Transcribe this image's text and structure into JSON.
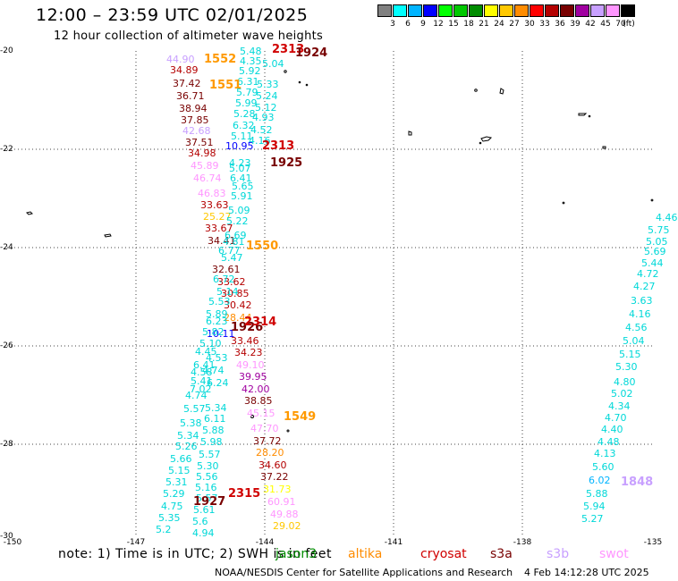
{
  "header": {
    "title": "12:00 – 23:59 UTC 02/01/2025",
    "subtitle": "12 hour collection of altimeter wave heights"
  },
  "colorbar": {
    "unit": "(ft)",
    "bins": [
      {
        "label": "3",
        "color": "#808080"
      },
      {
        "label": "6",
        "color": "#00ffff"
      },
      {
        "label": "9",
        "color": "#00b4ff"
      },
      {
        "label": "12",
        "color": "#0000ff"
      },
      {
        "label": "15",
        "color": "#00ff00"
      },
      {
        "label": "18",
        "color": "#00c800"
      },
      {
        "label": "21",
        "color": "#008c00"
      },
      {
        "label": "24",
        "color": "#ffff00"
      },
      {
        "label": "27",
        "color": "#ffc800"
      },
      {
        "label": "30",
        "color": "#ff8c00"
      },
      {
        "label": "33",
        "color": "#ff0000"
      },
      {
        "label": "36",
        "color": "#b40000"
      },
      {
        "label": "39",
        "color": "#780000"
      },
      {
        "label": "42",
        "color": "#a000a0"
      },
      {
        "label": "45",
        "color": "#c8a0ff"
      },
      {
        "label": "70",
        "color": "#ff96ff"
      },
      {
        "label": "",
        "color": "#000000"
      }
    ]
  },
  "map": {
    "lat_labels": [
      "-20",
      "-22",
      "-24",
      "-26",
      "-28",
      "-30"
    ],
    "lon_labels": [
      "-150",
      "-147",
      "-144",
      "-141",
      "-138",
      "-135"
    ],
    "pass_labels": [
      {
        "text": "2313",
        "color": "#d00000"
      },
      {
        "text": "1924",
        "color": "#780000"
      },
      {
        "text": "1552",
        "color": "#ff9900"
      },
      {
        "text": "1551",
        "color": "#ff9900"
      },
      {
        "text": "2313",
        "color": "#d00000"
      },
      {
        "text": "1925",
        "color": "#780000"
      },
      {
        "text": "1550",
        "color": "#ff9900"
      },
      {
        "text": "1926",
        "color": "#780000"
      },
      {
        "text": "2314",
        "color": "#d00000"
      },
      {
        "text": "1549",
        "color": "#ff9900"
      },
      {
        "text": "2315",
        "color": "#d00000"
      },
      {
        "text": "1927",
        "color": "#780000"
      },
      {
        "text": "1848",
        "color": "#c8a0ff"
      }
    ],
    "observations": [
      {
        "text": "5.48",
        "color": "#00d8d8"
      },
      {
        "text": "4.35",
        "color": "#00d8d8"
      },
      {
        "text": "5.04",
        "color": "#00d8d8"
      },
      {
        "text": "5.92",
        "color": "#00d8d8"
      },
      {
        "text": "6.31",
        "color": "#00d8d8"
      },
      {
        "text": "5.33",
        "color": "#00d8d8"
      },
      {
        "text": "5.79",
        "color": "#00d8d8"
      },
      {
        "text": "5.24",
        "color": "#00d8d8"
      },
      {
        "text": "5.99",
        "color": "#00d8d8"
      },
      {
        "text": "5.12",
        "color": "#00d8d8"
      },
      {
        "text": "5.28",
        "color": "#00d8d8"
      },
      {
        "text": "4.93",
        "color": "#00d8d8"
      },
      {
        "text": "6.32",
        "color": "#00d8d8"
      },
      {
        "text": "4.52",
        "color": "#00d8d8"
      },
      {
        "text": "5.11",
        "color": "#00d8d8"
      },
      {
        "text": "4.16",
        "color": "#00d8d8"
      },
      {
        "text": "44.90",
        "color": "#c8a0ff"
      },
      {
        "text": "34.89",
        "color": "#b40000"
      },
      {
        "text": "37.42",
        "color": "#780000"
      },
      {
        "text": "36.71",
        "color": "#780000"
      },
      {
        "text": "38.94",
        "color": "#780000"
      },
      {
        "text": "37.85",
        "color": "#780000"
      },
      {
        "text": "42.68",
        "color": "#c8a0ff"
      },
      {
        "text": "37.51",
        "color": "#780000"
      },
      {
        "text": "10.95",
        "color": "#0000ff"
      },
      {
        "text": "34.98",
        "color": "#b40000"
      },
      {
        "text": "45.89",
        "color": "#ff96ff"
      },
      {
        "text": "46.74",
        "color": "#ff96ff"
      },
      {
        "text": "46.83",
        "color": "#ff96ff"
      },
      {
        "text": "33.63",
        "color": "#b40000"
      },
      {
        "text": "25.27",
        "color": "#ffc800"
      },
      {
        "text": "33.67",
        "color": "#b40000"
      },
      {
        "text": "34.41",
        "color": "#780000"
      },
      {
        "text": "32.61",
        "color": "#780000"
      },
      {
        "text": "33.62",
        "color": "#b40000"
      },
      {
        "text": "30.85",
        "color": "#b40000"
      },
      {
        "text": "30.42",
        "color": "#b40000"
      },
      {
        "text": "28.44",
        "color": "#ff8c00"
      },
      {
        "text": "10.11",
        "color": "#0000ff"
      },
      {
        "text": "33.46",
        "color": "#b40000"
      },
      {
        "text": "34.23",
        "color": "#b40000"
      },
      {
        "text": "49.10",
        "color": "#ff96ff"
      },
      {
        "text": "39.95",
        "color": "#a000a0"
      },
      {
        "text": "42.00",
        "color": "#a000a0"
      },
      {
        "text": "38.85",
        "color": "#780000"
      },
      {
        "text": "45.15",
        "color": "#ff96ff"
      },
      {
        "text": "47.70",
        "color": "#ff96ff"
      },
      {
        "text": "37.72",
        "color": "#780000"
      },
      {
        "text": "28.20",
        "color": "#ff8c00"
      },
      {
        "text": "34.60",
        "color": "#b40000"
      },
      {
        "text": "37.22",
        "color": "#780000"
      },
      {
        "text": "31.73",
        "color": "#ffff00"
      },
      {
        "text": "60.91",
        "color": "#ff96ff"
      },
      {
        "text": "49.88",
        "color": "#ff96ff"
      },
      {
        "text": "29.02",
        "color": "#ffc800"
      },
      {
        "text": "4.23",
        "color": "#00d8d8"
      },
      {
        "text": "5.07",
        "color": "#00d8d8"
      },
      {
        "text": "6.41",
        "color": "#00d8d8"
      },
      {
        "text": "5.65",
        "color": "#00d8d8"
      },
      {
        "text": "5.91",
        "color": "#00d8d8"
      },
      {
        "text": "5.09",
        "color": "#00d8d8"
      },
      {
        "text": "5.22",
        "color": "#00d8d8"
      },
      {
        "text": "6.69",
        "color": "#00d8d8"
      },
      {
        "text": "4.81",
        "color": "#00d8d8"
      },
      {
        "text": "6.77",
        "color": "#00d8d8"
      },
      {
        "text": "5.47",
        "color": "#00d8d8"
      },
      {
        "text": "6.72",
        "color": "#00d8d8"
      },
      {
        "text": "5.14",
        "color": "#00d8d8"
      },
      {
        "text": "5.53",
        "color": "#00d8d8"
      },
      {
        "text": "5.89",
        "color": "#00d8d8"
      },
      {
        "text": "6.23",
        "color": "#00d8d8"
      },
      {
        "text": "5.82",
        "color": "#00d8d8"
      },
      {
        "text": "5.10",
        "color": "#00d8d8"
      },
      {
        "text": "4.45",
        "color": "#00d8d8"
      },
      {
        "text": "4.53",
        "color": "#00d8d8"
      },
      {
        "text": "6.41",
        "color": "#00d8d8"
      },
      {
        "text": "4.74",
        "color": "#00d8d8"
      },
      {
        "text": "4.58",
        "color": "#00d8d8"
      },
      {
        "text": "5.41",
        "color": "#00d8d8"
      },
      {
        "text": "6.24",
        "color": "#00d8d8"
      },
      {
        "text": "7.02",
        "color": "#00d8d8"
      },
      {
        "text": "4.74",
        "color": "#00d8d8"
      },
      {
        "text": "5.34",
        "color": "#00d8d8"
      },
      {
        "text": "5.57",
        "color": "#00d8d8"
      },
      {
        "text": "6.11",
        "color": "#00d8d8"
      },
      {
        "text": "5.38",
        "color": "#00d8d8"
      },
      {
        "text": "5.88",
        "color": "#00d8d8"
      },
      {
        "text": "5.34",
        "color": "#00d8d8"
      },
      {
        "text": "5.98",
        "color": "#00d8d8"
      },
      {
        "text": "5.26",
        "color": "#00d8d8"
      },
      {
        "text": "5.57",
        "color": "#00d8d8"
      },
      {
        "text": "5.66",
        "color": "#00d8d8"
      },
      {
        "text": "5.30",
        "color": "#00d8d8"
      },
      {
        "text": "5.15",
        "color": "#00d8d8"
      },
      {
        "text": "5.56",
        "color": "#00d8d8"
      },
      {
        "text": "5.31",
        "color": "#00d8d8"
      },
      {
        "text": "5.16",
        "color": "#00d8d8"
      },
      {
        "text": "5.29",
        "color": "#00d8d8"
      },
      {
        "text": "5.57",
        "color": "#00d8d8"
      },
      {
        "text": "4.75",
        "color": "#00d8d8"
      },
      {
        "text": "5.61",
        "color": "#00d8d8"
      },
      {
        "text": "5.35",
        "color": "#00d8d8"
      },
      {
        "text": "5.6",
        "color": "#00d8d8"
      },
      {
        "text": "5.2",
        "color": "#00d8d8"
      },
      {
        "text": "4.94",
        "color": "#00d8d8"
      },
      {
        "text": "4.46",
        "color": "#00d8d8"
      },
      {
        "text": "5.75",
        "color": "#00d8d8"
      },
      {
        "text": "5.05",
        "color": "#00d8d8"
      },
      {
        "text": "5.69",
        "color": "#00d8d8"
      },
      {
        "text": "5.44",
        "color": "#00d8d8"
      },
      {
        "text": "4.72",
        "color": "#00d8d8"
      },
      {
        "text": "4.27",
        "color": "#00d8d8"
      },
      {
        "text": "3.63",
        "color": "#00d8d8"
      },
      {
        "text": "4.16",
        "color": "#00d8d8"
      },
      {
        "text": "4.56",
        "color": "#00d8d8"
      },
      {
        "text": "5.04",
        "color": "#00d8d8"
      },
      {
        "text": "5.15",
        "color": "#00d8d8"
      },
      {
        "text": "5.30",
        "color": "#00d8d8"
      },
      {
        "text": "4.80",
        "color": "#00d8d8"
      },
      {
        "text": "5.02",
        "color": "#00d8d8"
      },
      {
        "text": "4.34",
        "color": "#00d8d8"
      },
      {
        "text": "4.70",
        "color": "#00d8d8"
      },
      {
        "text": "4.40",
        "color": "#00d8d8"
      },
      {
        "text": "4.48",
        "color": "#00d8d8"
      },
      {
        "text": "4.13",
        "color": "#00d8d8"
      },
      {
        "text": "5.60",
        "color": "#00d8d8"
      },
      {
        "text": "6.02",
        "color": "#00b4ff"
      },
      {
        "text": "5.88",
        "color": "#00d8d8"
      },
      {
        "text": "5.94",
        "color": "#00d8d8"
      },
      {
        "text": "5.27",
        "color": "#00d8d8"
      }
    ]
  },
  "footer": {
    "note": "note: 1) Time is in UTC; 2) SWH is in feet",
    "satellites": [
      {
        "name": "jason3",
        "color": "#008c00"
      },
      {
        "name": "altika",
        "color": "#ff8c00"
      },
      {
        "name": "cryosat",
        "color": "#d00000"
      },
      {
        "name": "s3a",
        "color": "#780000"
      },
      {
        "name": "s3b",
        "color": "#c8a0ff"
      },
      {
        "name": "swot",
        "color": "#ff96ff"
      }
    ],
    "credit": "NOAA/NESDIS Center for Satellite Applications and Research",
    "timestamp": "4 Feb 14:12:28 UTC 2025"
  }
}
